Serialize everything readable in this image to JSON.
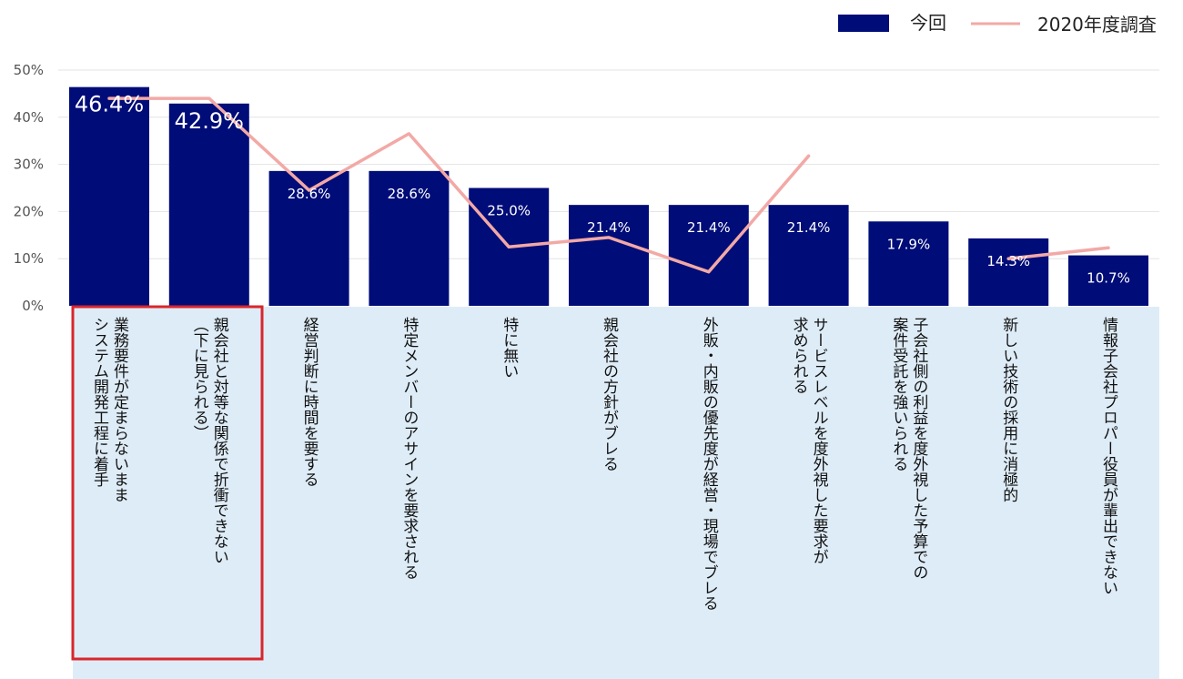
{
  "chart_data": {
    "type": "bar",
    "categories": [
      [
        "業務要件が定まらないまま",
        "システム開発工程に着手"
      ],
      [
        "親会社と対等な関係で折衝できない",
        "（下に見られる）"
      ],
      [
        "経営判断に時間を要する"
      ],
      [
        "特定メンバーのアサインを要求される"
      ],
      [
        "特に無い"
      ],
      [
        "親会社の方針がブレる"
      ],
      [
        "外販・内販の優先度が経営・現場でブレる"
      ],
      [
        "サービスレベルを度外視した要求が",
        "求められる"
      ],
      [
        "子会社側の利益を度外視した予算での",
        "案件受託を強いられる"
      ],
      [
        "新しい技術の採用に消極的"
      ],
      [
        "情報子会社プロパー役員が輩出できない"
      ]
    ],
    "series": [
      {
        "name": "今回",
        "type": "bar",
        "color": "#000c78",
        "values": [
          46.4,
          42.9,
          28.6,
          28.6,
          25.0,
          21.4,
          21.4,
          21.4,
          17.9,
          14.3,
          10.7
        ],
        "labels": [
          "46.4%",
          "42.9%",
          "28.6%",
          "28.6%",
          "25.0%",
          "21.4%",
          "21.4%",
          "21.4%",
          "17.9%",
          "14.3%",
          "10.7%"
        ]
      },
      {
        "name": "2020年度調査",
        "type": "line",
        "color": "#f2a9a6",
        "segments": [
          [
            [
              0,
              44.0
            ],
            [
              1,
              44.0
            ],
            [
              2,
              24.5
            ],
            [
              3,
              36.5
            ],
            [
              4,
              12.5
            ],
            [
              5,
              14.5
            ],
            [
              6,
              7.2
            ],
            [
              7,
              31.8
            ]
          ],
          [
            [
              9,
              10.0
            ],
            [
              10,
              12.3
            ]
          ]
        ]
      }
    ],
    "ylim": [
      0,
      50
    ],
    "yticks": [
      "0%",
      "10%",
      "20%",
      "30%",
      "40%",
      "50%"
    ],
    "ytick_values": [
      0,
      10,
      20,
      30,
      40,
      50
    ],
    "grid": true,
    "legend_position": "top-right",
    "highlighted_categories": [
      0,
      1
    ],
    "category_band_color": "#deecf7",
    "highlight_color": "#d9262b"
  }
}
